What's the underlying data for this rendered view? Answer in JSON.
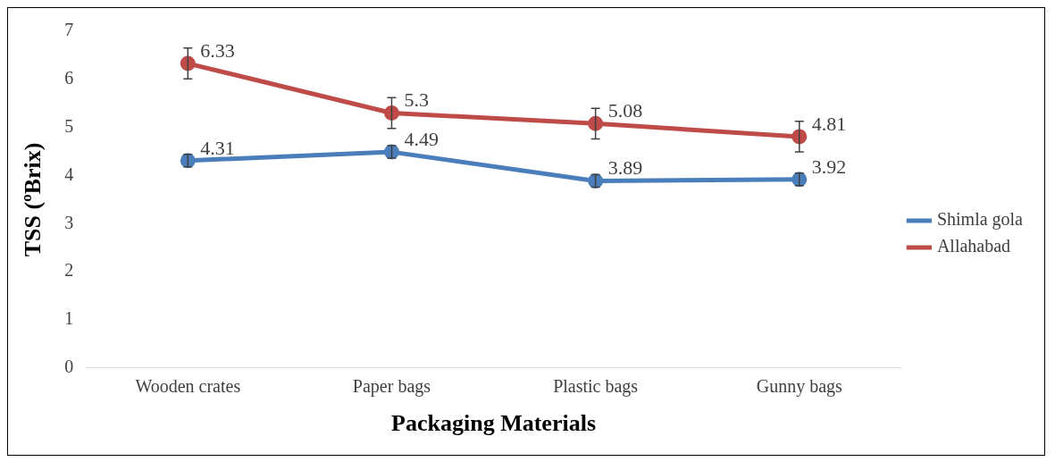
{
  "chart_data": {
    "type": "line",
    "xlabel": "Packaging Materials",
    "ylabel": "TSS (ºBrix)",
    "categories": [
      "Wooden crates",
      "Paper bags",
      "Plastic bags",
      "Gunny bags"
    ],
    "series": [
      {
        "name": "Shimla gola",
        "color": "#4a7ebb",
        "values": [
          4.31,
          4.49,
          3.89,
          3.92
        ],
        "errors": [
          0.13,
          0.13,
          0.13,
          0.13
        ]
      },
      {
        "name": "Allahabad",
        "color": "#be4b48",
        "values": [
          6.33,
          5.3,
          5.08,
          4.81
        ],
        "errors": [
          0.32,
          0.32,
          0.32,
          0.32
        ]
      }
    ],
    "ylim": [
      0,
      7
    ],
    "yticks": [
      0,
      1,
      2,
      3,
      4,
      5,
      6,
      7
    ],
    "grid": false,
    "legend": "right",
    "marker": "circle",
    "line_style": "solid",
    "data_labels": true
  }
}
